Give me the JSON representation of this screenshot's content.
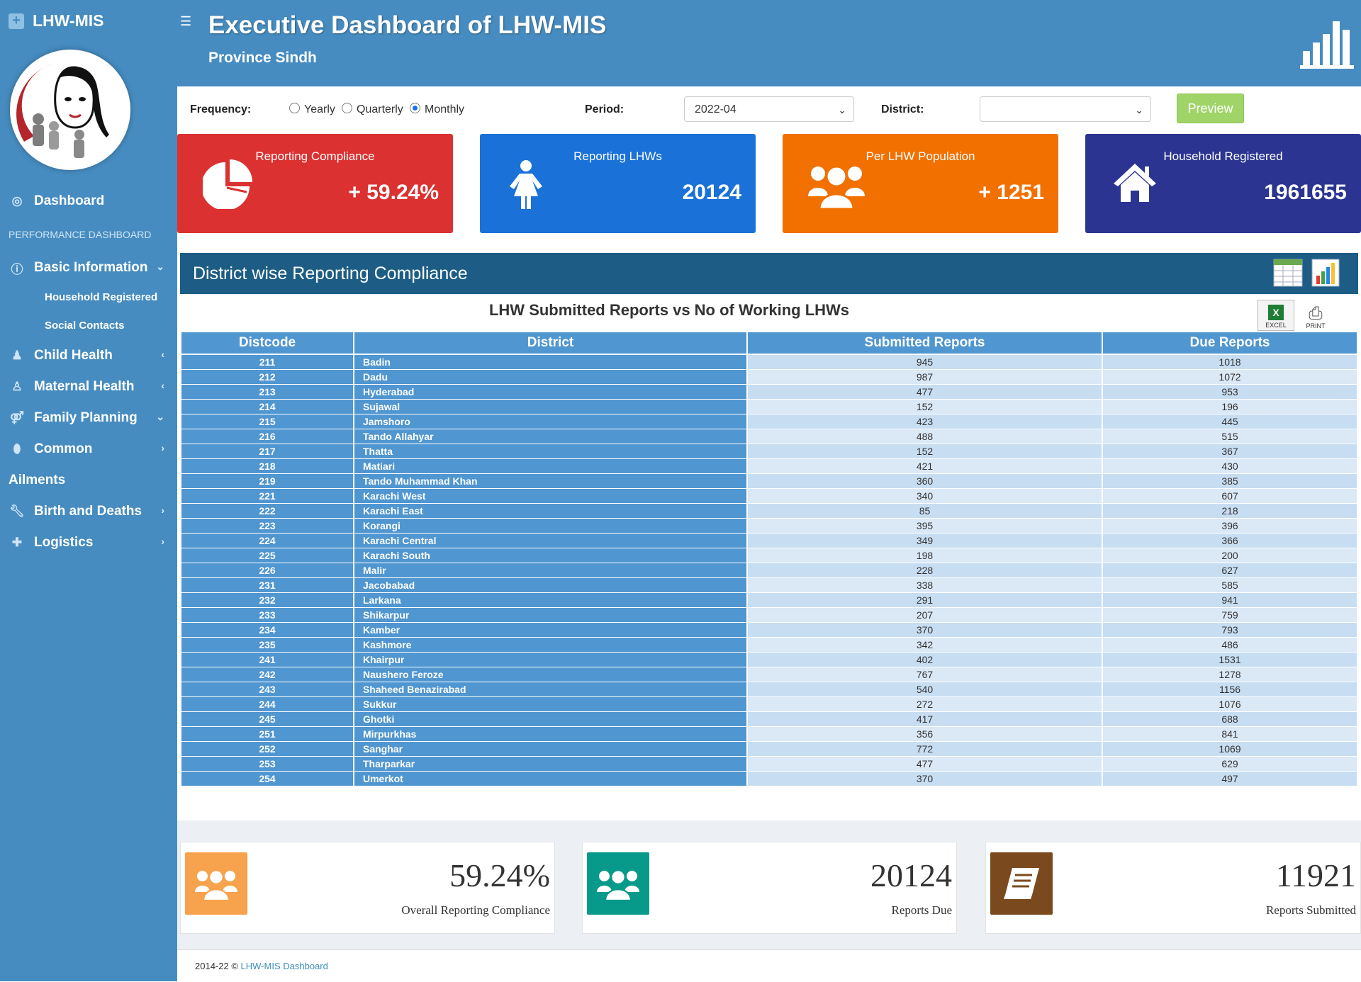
{
  "sidebar": {
    "brand": "LHW-MIS",
    "dashboard": "Dashboard",
    "section_header": "PERFORMANCE DASHBOARD",
    "items": [
      {
        "label": "Basic Information",
        "icon": "info-icon",
        "chevron": "⌄"
      },
      {
        "label": "Child Health",
        "icon": "child-icon",
        "chevron": "‹"
      },
      {
        "label": "Maternal Health",
        "icon": "maternal-icon",
        "chevron": "‹"
      },
      {
        "label": "Family Planning",
        "icon": "gender-icon",
        "chevron": "⌄"
      },
      {
        "label": "Common",
        "icon": "pill-icon",
        "chevron": "›"
      },
      {
        "label": "Ailments"
      },
      {
        "label": "Birth and Deaths",
        "icon": "wrench-icon",
        "chevron": "›"
      },
      {
        "label": "Logistics",
        "icon": "medkit-icon",
        "chevron": "›"
      }
    ],
    "sub_items": [
      "Household Registered",
      "Social Contacts"
    ]
  },
  "header": {
    "title": "Executive Dashboard of LHW-MIS",
    "subtitle": "Province Sindh"
  },
  "filters": {
    "frequency_label": "Frequency:",
    "options": [
      "Yearly",
      "Quarterly",
      "Monthly"
    ],
    "selected": "Monthly",
    "period_label": "Period:",
    "period_value": "2022-04",
    "district_label": "District:",
    "district_value": "",
    "preview": "Preview"
  },
  "cards": [
    {
      "title": "Reporting Compliance",
      "value": "+ 59.24%",
      "color": "#dc3131"
    },
    {
      "title": "Reporting LHWs",
      "value": "20124",
      "color": "#1a72d9"
    },
    {
      "title": "Per LHW Population",
      "value": "+ 1251",
      "color": "#f17000"
    },
    {
      "title": "Household Registered",
      "value": "1961655",
      "color": "#2b3591"
    }
  ],
  "panel": {
    "title": "District wise Reporting Compliance",
    "chart_title": "LHW Submitted Reports vs No of Working LHWs",
    "excel": "EXCEL",
    "print": "PRINT"
  },
  "table": {
    "headers": [
      "Distcode",
      "District",
      "Submitted Reports",
      "Due Reports"
    ],
    "rows": [
      [
        "211",
        "Badin",
        "945",
        "1018"
      ],
      [
        "212",
        "Dadu",
        "987",
        "1072"
      ],
      [
        "213",
        "Hyderabad",
        "477",
        "953"
      ],
      [
        "214",
        "Sujawal",
        "152",
        "196"
      ],
      [
        "215",
        "Jamshoro",
        "423",
        "445"
      ],
      [
        "216",
        "Tando Allahyar",
        "488",
        "515"
      ],
      [
        "217",
        "Thatta",
        "152",
        "367"
      ],
      [
        "218",
        "Matiari",
        "421",
        "430"
      ],
      [
        "219",
        "Tando Muhammad Khan",
        "360",
        "385"
      ],
      [
        "221",
        "Karachi West",
        "340",
        "607"
      ],
      [
        "222",
        "Karachi East",
        "85",
        "218"
      ],
      [
        "223",
        "Korangi",
        "395",
        "396"
      ],
      [
        "224",
        "Karachi Central",
        "349",
        "366"
      ],
      [
        "225",
        "Karachi South",
        "198",
        "200"
      ],
      [
        "226",
        "Malir",
        "228",
        "627"
      ],
      [
        "231",
        "Jacobabad",
        "338",
        "585"
      ],
      [
        "232",
        "Larkana",
        "291",
        "941"
      ],
      [
        "233",
        "Shikarpur",
        "207",
        "759"
      ],
      [
        "234",
        "Kamber",
        "370",
        "793"
      ],
      [
        "235",
        "Kashmore",
        "342",
        "486"
      ],
      [
        "241",
        "Khairpur",
        "402",
        "1531"
      ],
      [
        "242",
        "Naushero Feroze",
        "767",
        "1278"
      ],
      [
        "243",
        "Shaheed Benazirabad",
        "540",
        "1156"
      ],
      [
        "244",
        "Sukkur",
        "272",
        "1076"
      ],
      [
        "245",
        "Ghotki",
        "417",
        "688"
      ],
      [
        "251",
        "Mirpurkhas",
        "356",
        "841"
      ],
      [
        "252",
        "Sanghar",
        "772",
        "1069"
      ],
      [
        "253",
        "Tharparkar",
        "477",
        "629"
      ],
      [
        "254",
        "Umerkot",
        "370",
        "497"
      ]
    ]
  },
  "summary": [
    {
      "value": "59.24%",
      "caption": "Overall Reporting Compliance",
      "color": "#f7a24c"
    },
    {
      "value": "20124",
      "caption": "Reports Due",
      "color": "#079a8a"
    },
    {
      "value": "11921",
      "caption": "Reports Submitted",
      "color": "#7a4a1e"
    }
  ],
  "footer": {
    "text": "2014-22 ©",
    "link": "LHW-MIS Dashboard"
  }
}
